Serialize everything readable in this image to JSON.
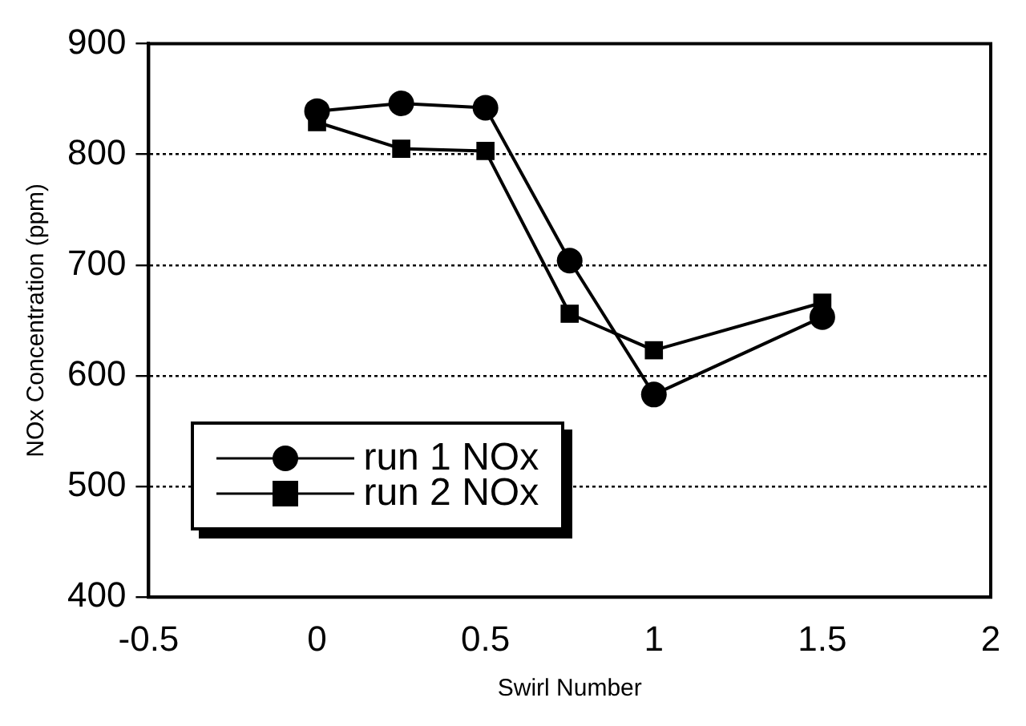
{
  "chart_data": {
    "type": "line",
    "xlabel": "Swirl Number",
    "ylabel": "NOx Concentration (ppm)",
    "xlim": [
      -0.5,
      2
    ],
    "xticks": [
      -0.5,
      0,
      0.5,
      1,
      1.5,
      2
    ],
    "ylim": [
      400,
      900
    ],
    "yticks": [
      400,
      500,
      600,
      700,
      800,
      900
    ],
    "grid": "y",
    "legend": "bottom left",
    "line_style": "solid",
    "series": [
      {
        "name": "run 1 NOx",
        "color": "#000000",
        "marker": "circle",
        "x": [
          0,
          0.25,
          0.5,
          0.75,
          1,
          1.5
        ],
        "values": [
          839,
          846,
          842,
          704,
          583,
          653
        ]
      },
      {
        "name": "run 2 NOx",
        "color": "#000000",
        "marker": "square",
        "x": [
          0,
          0.25,
          0.5,
          0.75,
          1,
          1.5
        ],
        "values": [
          829,
          805,
          803,
          656,
          623,
          666
        ]
      }
    ]
  }
}
